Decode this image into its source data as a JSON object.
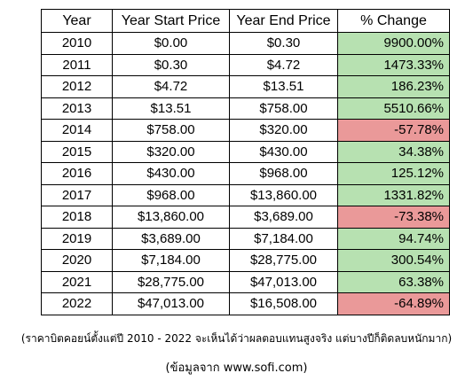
{
  "table": {
    "headers": {
      "year": "Year",
      "start": "Year Start Price",
      "end": "Year End Price",
      "change": "% Change"
    },
    "rows": [
      {
        "year": "2010",
        "start": "$0.00",
        "end": "$0.30",
        "change": "9900.00%",
        "direction": "up"
      },
      {
        "year": "2011",
        "start": "$0.30",
        "end": "$4.72",
        "change": "1473.33%",
        "direction": "up"
      },
      {
        "year": "2012",
        "start": "$4.72",
        "end": "$13.51",
        "change": "186.23%",
        "direction": "up"
      },
      {
        "year": "2013",
        "start": "$13.51",
        "end": "$758.00",
        "change": "5510.66%",
        "direction": "up"
      },
      {
        "year": "2014",
        "start": "$758.00",
        "end": "$320.00",
        "change": "-57.78%",
        "direction": "down"
      },
      {
        "year": "2015",
        "start": "$320.00",
        "end": "$430.00",
        "change": "34.38%",
        "direction": "up"
      },
      {
        "year": "2016",
        "start": "$430.00",
        "end": "$968.00",
        "change": "125.12%",
        "direction": "up"
      },
      {
        "year": "2017",
        "start": "$968.00",
        "end": "$13,860.00",
        "change": "1331.82%",
        "direction": "up"
      },
      {
        "year": "2018",
        "start": "$13,860.00",
        "end": "$3,689.00",
        "change": "-73.38%",
        "direction": "down"
      },
      {
        "year": "2019",
        "start": "$3,689.00",
        "end": "$7,184.00",
        "change": "94.74%",
        "direction": "up"
      },
      {
        "year": "2020",
        "start": "$7,184.00",
        "end": "$28,775.00",
        "change": "300.54%",
        "direction": "up"
      },
      {
        "year": "2021",
        "start": "$28,775.00",
        "end": "$47,013.00",
        "change": "63.38%",
        "direction": "up"
      },
      {
        "year": "2022",
        "start": "$47,013.00",
        "end": "$16,508.00",
        "change": "-64.89%",
        "direction": "down"
      }
    ]
  },
  "caption": {
    "line1": "(ราคาบิตคอยน์ตั้งแต่ปี 2010 - 2022 จะเห็นได้ว่าผลตอบแทนสูงจริง แต่บางปีก็ติดลบหนักมาก)",
    "line2": "(ข้อมูลจาก www.sofi.com)"
  },
  "colors": {
    "positive": "#b7e1b1",
    "negative": "#ea9999"
  }
}
